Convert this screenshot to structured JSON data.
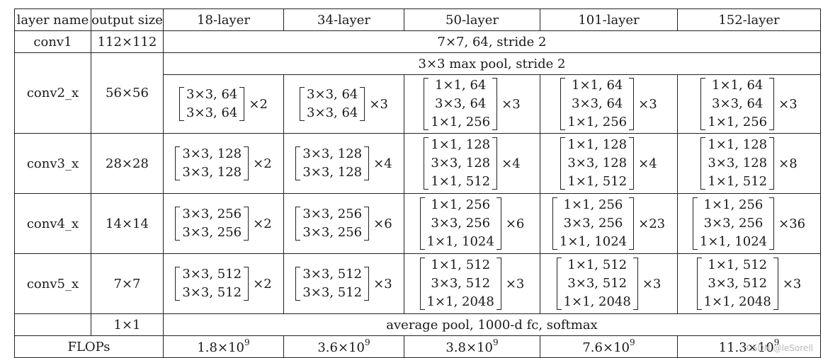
{
  "headers": [
    "layer name",
    "output size",
    "18-layer",
    "34-layer",
    "50-layer",
    "101-layer",
    "152-layer"
  ],
  "conv1": {
    "name": "conv1",
    "size": "112×112",
    "spec": "7×7, 64, stride 2"
  },
  "pool": {
    "spec": "3×3 max pool, stride 2"
  },
  "rows": [
    {
      "name": "conv2_x",
      "size": "56×56",
      "cells": [
        {
          "lines": [
            "3×3, 64",
            "3×3, 64"
          ],
          "mult": "×2"
        },
        {
          "lines": [
            "3×3, 64",
            "3×3, 64"
          ],
          "mult": "×3"
        },
        {
          "lines": [
            "1×1, 64",
            "3×3, 64",
            "1×1, 256"
          ],
          "mult": "×3"
        },
        {
          "lines": [
            "1×1, 64",
            "3×3, 64",
            "1×1, 256"
          ],
          "mult": "×3"
        },
        {
          "lines": [
            "1×1, 64",
            "3×3, 64",
            "1×1, 256"
          ],
          "mult": "×3"
        }
      ]
    },
    {
      "name": "conv3_x",
      "size": "28×28",
      "cells": [
        {
          "lines": [
            "3×3, 128",
            "3×3, 128"
          ],
          "mult": "×2"
        },
        {
          "lines": [
            "3×3, 128",
            "3×3, 128"
          ],
          "mult": "×4"
        },
        {
          "lines": [
            "1×1, 128",
            "3×3, 128",
            "1×1, 512"
          ],
          "mult": "×4"
        },
        {
          "lines": [
            "1×1, 128",
            "3×3, 128",
            "1×1, 512"
          ],
          "mult": "×4"
        },
        {
          "lines": [
            "1×1, 128",
            "3×3, 128",
            "1×1, 512"
          ],
          "mult": "×8"
        }
      ]
    },
    {
      "name": "conv4_x",
      "size": "14×14",
      "cells": [
        {
          "lines": [
            "3×3, 256",
            "3×3, 256"
          ],
          "mult": "×2"
        },
        {
          "lines": [
            "3×3, 256",
            "3×3, 256"
          ],
          "mult": "×6"
        },
        {
          "lines": [
            "1×1, 256",
            "3×3, 256",
            "1×1, 1024"
          ],
          "mult": "×6"
        },
        {
          "lines": [
            "1×1, 256",
            "3×3, 256",
            "1×1, 1024"
          ],
          "mult": "×23"
        },
        {
          "lines": [
            "1×1, 256",
            "3×3, 256",
            "1×1, 1024"
          ],
          "mult": "×36"
        }
      ]
    },
    {
      "name": "conv5_x",
      "size": "7×7",
      "cells": [
        {
          "lines": [
            "3×3, 512",
            "3×3, 512"
          ],
          "mult": "×2"
        },
        {
          "lines": [
            "3×3, 512",
            "3×3, 512"
          ],
          "mult": "×3"
        },
        {
          "lines": [
            "1×1, 512",
            "3×3, 512",
            "1×1, 2048"
          ],
          "mult": "×3"
        },
        {
          "lines": [
            "1×1, 512",
            "3×3, 512",
            "1×1, 2048"
          ],
          "mult": "×3"
        },
        {
          "lines": [
            "1×1, 512",
            "3×3, 512",
            "1×1, 2048"
          ],
          "mult": "×3"
        }
      ]
    }
  ],
  "avg": {
    "size": "1×1",
    "spec": "average pool, 1000-d fc, softmax"
  },
  "flops": {
    "label": "FLOPs",
    "values": [
      {
        "mantissa": "1.8×10",
        "exp": "9"
      },
      {
        "mantissa": "3.6×10",
        "exp": "9"
      },
      {
        "mantissa": "3.8×10",
        "exp": "9"
      },
      {
        "mantissa": "7.6×10",
        "exp": "9"
      },
      {
        "mantissa": "11.3×10",
        "exp": "9"
      }
    ]
  },
  "watermark": "CSDN @leSorell"
}
